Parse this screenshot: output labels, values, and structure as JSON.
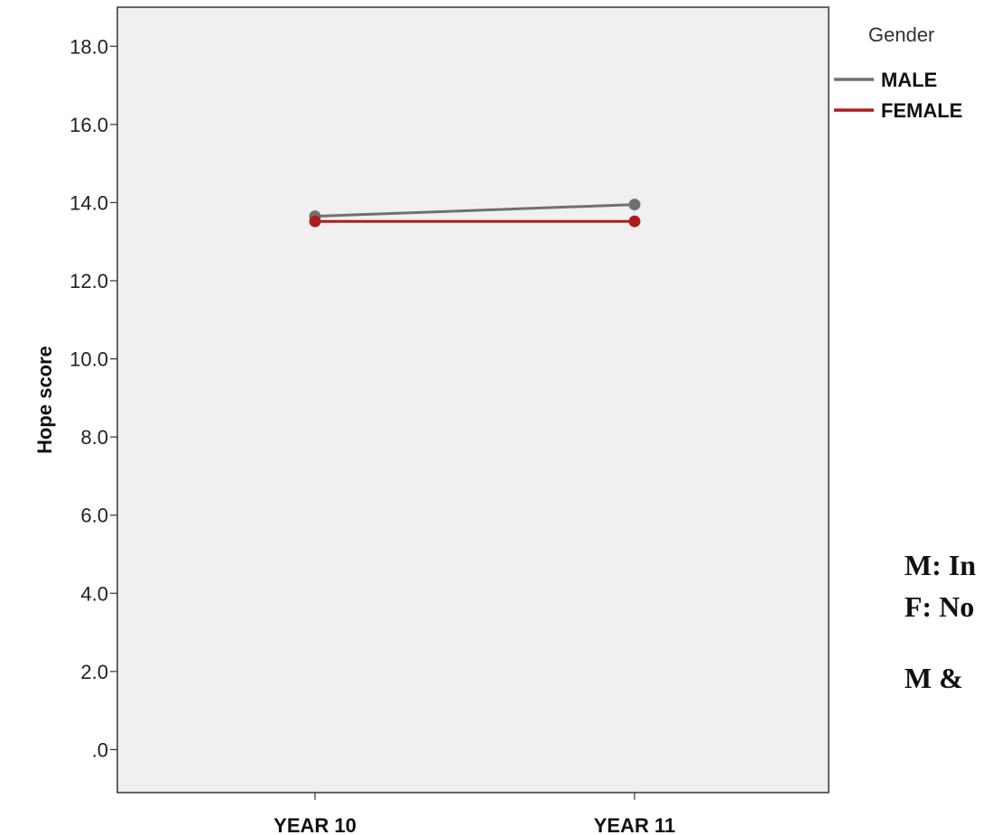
{
  "chart_data": {
    "type": "line",
    "categories": [
      "YEAR 10",
      "YEAR 11"
    ],
    "ylabel": "Hope score",
    "xlabel": "",
    "ylim": [
      -1.1,
      19.0
    ],
    "y_ticks": [
      ".0",
      "2.0",
      "4.0",
      "6.0",
      "8.0",
      "10.0",
      "12.0",
      "14.0",
      "16.0",
      "18.0"
    ],
    "y_tick_values": [
      0,
      2,
      4,
      6,
      8,
      10,
      12,
      14,
      16,
      18
    ],
    "grid": false,
    "legend": {
      "title": "Gender",
      "position": "top-right"
    },
    "series": [
      {
        "name": "MALE",
        "color": "#707070",
        "values": [
          13.65,
          13.95
        ]
      },
      {
        "name": "FEMALE",
        "color": "#b01c1c",
        "values": [
          13.52,
          13.52
        ]
      }
    ]
  },
  "annotations": {
    "line1": "M: In",
    "line2": "F: No",
    "line3": "M &"
  },
  "colors": {
    "plot_background": "#f0f0f0",
    "axis": "#333333"
  }
}
